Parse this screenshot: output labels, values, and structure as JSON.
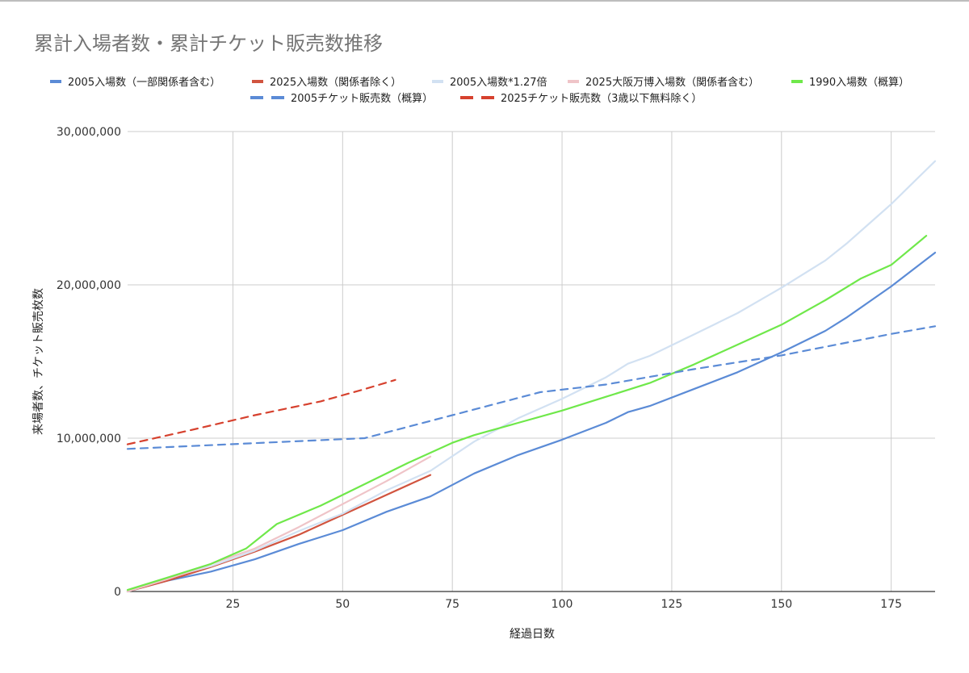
{
  "chart_data": {
    "type": "line",
    "title": "累計入場者数・累計チケット販売数推移",
    "xlabel": "経過日数",
    "ylabel": "来場者数、チケット販売枚数",
    "xlim": [
      1,
      185
    ],
    "ylim": [
      0,
      30000000
    ],
    "x_ticks": [
      "25",
      "50",
      "75",
      "100",
      "125",
      "150",
      "175"
    ],
    "x_tick_values": [
      25,
      50,
      75,
      100,
      125,
      150,
      175
    ],
    "y_ticks": [
      "0",
      "10,000,000",
      "20,000,000",
      "30,000,000"
    ],
    "y_tick_values": [
      0,
      10000000,
      20000000,
      30000000
    ],
    "grid": true,
    "legend_position": "top",
    "series": [
      {
        "name": "2005入場数（一部関係者含む）",
        "color": "#5b8bd6",
        "dash": "solid",
        "x": [
          1,
          10,
          20,
          30,
          40,
          50,
          60,
          70,
          80,
          90,
          100,
          110,
          115,
          120,
          130,
          140,
          150,
          160,
          165,
          170,
          175,
          180,
          185
        ],
        "y": [
          0,
          700000,
          1300000,
          2100000,
          3100000,
          4000000,
          5200000,
          6200000,
          7700000,
          8900000,
          9900000,
          11000000,
          11700000,
          12100000,
          13200000,
          14300000,
          15600000,
          17000000,
          17900000,
          18900000,
          19900000,
          21000000,
          22100000
        ]
      },
      {
        "name": "2025入場数（関係者除く）",
        "color": "#d1543f",
        "dash": "solid",
        "x": [
          1,
          10,
          20,
          30,
          40,
          50,
          60,
          70
        ],
        "y": [
          0,
          700000,
          1600000,
          2600000,
          3700000,
          5000000,
          6300000,
          7600000
        ]
      },
      {
        "name": "2005入場数*1.27倍",
        "color": "#d2e1f2",
        "dash": "solid",
        "x": [
          1,
          10,
          20,
          30,
          40,
          50,
          60,
          70,
          80,
          90,
          100,
          110,
          115,
          120,
          130,
          140,
          150,
          160,
          165,
          170,
          175,
          180,
          185
        ],
        "y": [
          0,
          890000,
          1650000,
          2670000,
          3940000,
          5080000,
          6600000,
          7870000,
          9780000,
          11300000,
          12570000,
          13970000,
          14860000,
          15370000,
          16760000,
          18160000,
          19810000,
          21590000,
          22730000,
          24000000,
          25270000,
          26670000,
          28070000
        ]
      },
      {
        "name": "2025大阪万博入場数（関係者含む）",
        "color": "#efc4c8",
        "dash": "solid",
        "x": [
          1,
          10,
          20,
          30,
          40,
          50,
          60,
          70
        ],
        "y": [
          0,
          800000,
          1800000,
          2800000,
          4200000,
          5700000,
          7200000,
          8800000
        ]
      },
      {
        "name": "1990入場数（概算）",
        "color": "#6fe84a",
        "dash": "solid",
        "x": [
          1,
          10,
          20,
          28,
          35,
          45,
          55,
          65,
          75,
          80,
          90,
          100,
          110,
          120,
          130,
          140,
          150,
          160,
          168,
          175,
          183
        ],
        "y": [
          100000,
          900000,
          1800000,
          2800000,
          4400000,
          5600000,
          7000000,
          8400000,
          9700000,
          10200000,
          11000000,
          11800000,
          12700000,
          13600000,
          14800000,
          16100000,
          17400000,
          19000000,
          20400000,
          21300000,
          23200000
        ]
      },
      {
        "name": "2005チケット販売数（概算）",
        "color": "#5b8bd6",
        "dash": "dashed",
        "x": [
          1,
          55,
          75,
          95,
          110,
          130,
          150,
          175,
          185
        ],
        "y": [
          9300000,
          10000000,
          11500000,
          13000000,
          13500000,
          14500000,
          15400000,
          16800000,
          17300000
        ]
      },
      {
        "name": "2025チケット販売数（3歳以下無料除く）",
        "color": "#d6412e",
        "dash": "dashed",
        "x": [
          1,
          15,
          30,
          45,
          55,
          62
        ],
        "y": [
          9600000,
          10500000,
          11500000,
          12400000,
          13200000,
          13800000
        ]
      }
    ]
  }
}
